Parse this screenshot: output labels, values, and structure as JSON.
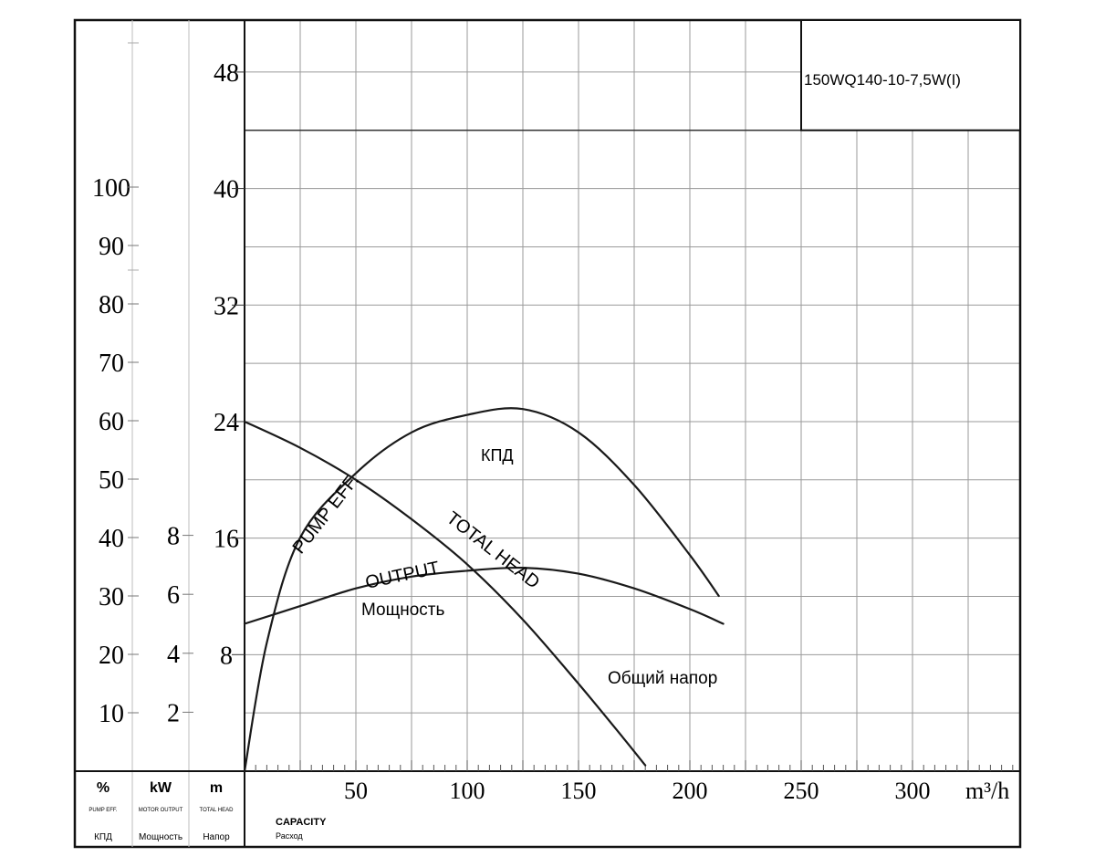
{
  "chart_data": {
    "type": "line",
    "title": "150WQ140-10-7,5W(I)",
    "x_axis": {
      "label": "CAPACITY",
      "label_ru": "Расход",
      "unit": "m³/h",
      "range": [
        0,
        350
      ],
      "ticks": [
        50,
        100,
        150,
        200,
        250,
        300
      ]
    },
    "y_axes": [
      {
        "id": "eff",
        "header": "%",
        "sub": "PUMP EFF.",
        "sub_ru": "КПД",
        "range": [
          0,
          110
        ],
        "ticks": [
          10,
          20,
          30,
          40,
          50,
          60,
          70,
          80,
          90,
          100
        ]
      },
      {
        "id": "power",
        "header": "kW",
        "sub": "MOTOR OUTPUT",
        "sub_ru": "Мощность",
        "range": [
          0,
          22
        ],
        "ticks": [
          2,
          4,
          6,
          8
        ]
      },
      {
        "id": "head",
        "header": "m",
        "sub": "TOTAL HEAD",
        "sub_ru": "Напор",
        "range": [
          0,
          52
        ],
        "ticks": [
          8,
          16,
          24,
          32,
          40,
          48
        ]
      }
    ],
    "series": [
      {
        "name": "PUMP EFF.",
        "name_ru": "КПД",
        "axis": "eff",
        "x": [
          0,
          10,
          25,
          50,
          75,
          100,
          125,
          150,
          175,
          200,
          213
        ],
        "y": [
          0,
          22,
          40,
          51,
          58,
          61,
          62,
          58,
          49,
          37,
          30
        ]
      },
      {
        "name": "TOTAL HEAD",
        "name_ru": "Общий напор",
        "axis": "head",
        "x": [
          0,
          25,
          50,
          75,
          100,
          125,
          150,
          170,
          180
        ],
        "y": [
          24,
          22.2,
          20,
          17.3,
          14.2,
          10.4,
          6.0,
          2.3,
          0.4
        ]
      },
      {
        "name": "OUTPUT",
        "name_ru": "Мощность",
        "axis": "power",
        "x": [
          0,
          25,
          50,
          75,
          100,
          125,
          150,
          175,
          200,
          215
        ],
        "y": [
          5.0,
          5.6,
          6.2,
          6.6,
          6.8,
          6.9,
          6.7,
          6.2,
          5.5,
          5.0
        ]
      }
    ]
  },
  "labels": {
    "eff_curve": "PUMP EFF.",
    "eff_curve_ru": "КПД",
    "head_curve": "TOTAL HEAD",
    "head_curve_ru": "Общий напор",
    "output_curve": "OUTPUT",
    "output_curve_ru": "Мощность"
  }
}
